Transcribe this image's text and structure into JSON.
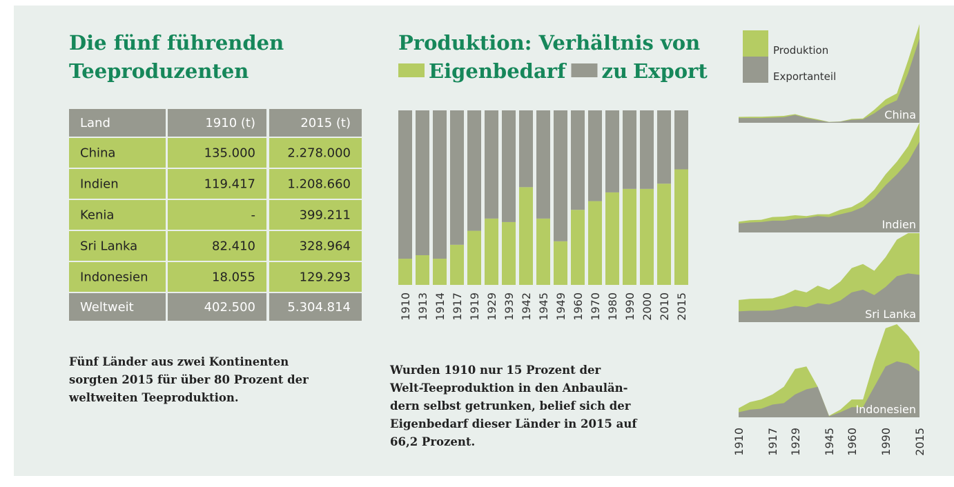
{
  "left": {
    "title": [
      "Die fünf führenden",
      "Teeproduzenten"
    ],
    "text": [
      "Fünf Länder aus zwei Kontinenten",
      "sorgten 2015 für über 80 Prozent der",
      "weltweiten Teeproduktion."
    ]
  },
  "table": {
    "header": [
      "Land",
      "1910 (t)",
      "2015 (t)"
    ],
    "rows": [
      [
        "China",
        "135.000",
        "2.278.000"
      ],
      [
        "Indien",
        "119.417",
        "1.208.660"
      ],
      [
        "Kenia",
        "-",
        "399.211"
      ],
      [
        "Sri Lanka",
        "82.410",
        "328.964"
      ],
      [
        "Indonesien",
        "18.055",
        "129.293"
      ]
    ],
    "total": [
      "Weltweit",
      "402.500",
      "5.304.814"
    ]
  },
  "middle": {
    "text": [
      "Wurden 1910 nur 15 Prozent der",
      "Welt-Teeproduktion in den Anbaulän-",
      "dern selbst getrunken, belief sich der",
      "Eigenbedarf dieser Länder in 2015 auf",
      "66,2 Prozent."
    ]
  },
  "chart_data": [
    {
      "type": "bar",
      "stacked": true,
      "title": "Produktion: Verhältnis von",
      "legend_joiner": "zu",
      "categories": [
        "1910",
        "1913",
        "1914",
        "1917",
        "1919",
        "1929",
        "1939",
        "1942",
        "1945",
        "1949",
        "1960",
        "1970",
        "1980",
        "1990",
        "2000",
        "2010",
        "2015"
      ],
      "ylim": [
        0,
        100
      ],
      "series": [
        {
          "name": "Eigenbedarf",
          "color": "#b5cc63",
          "values": [
            15,
            17,
            15,
            23,
            31,
            38,
            36,
            56,
            38,
            25,
            43,
            48,
            53,
            55,
            55,
            58,
            66.2
          ]
        },
        {
          "name": "Export",
          "color": "#97998f",
          "values": [
            85,
            83,
            85,
            77,
            69,
            62,
            64,
            44,
            62,
            75,
            57,
            52,
            47,
            45,
            45,
            42,
            33.8
          ]
        }
      ]
    },
    {
      "type": "area",
      "categories": [
        "1910",
        null,
        null,
        "1917",
        null,
        "1929",
        null,
        null,
        "1945",
        null,
        "1960",
        null,
        null,
        "1990",
        null,
        null,
        "2015"
      ],
      "series": [
        {
          "name": "Produktion",
          "color": "#b5cc63"
        },
        {
          "name": "Exportanteil",
          "color": "#97998f"
        }
      ],
      "panels": [
        {
          "title": "China",
          "ylim": [
            0,
            2278
          ],
          "values": [
            [
              135,
              140,
              140,
              150,
              160,
              200,
              130,
              80,
              20,
              30,
              90,
              100,
              300,
              540,
              680,
              1450,
              2278
            ],
            [
              110,
              110,
              110,
              120,
              130,
              180,
              110,
              60,
              15,
              25,
              70,
              80,
              220,
              400,
              520,
              1150,
              1950
            ]
          ]
        },
        {
          "title": "Indien",
          "ylim": [
            0,
            1208
          ],
          "values": [
            [
              119,
              135,
              140,
              170,
              175,
              190,
              180,
              200,
              200,
              250,
              280,
              350,
              470,
              640,
              780,
              950,
              1208
            ],
            [
              100,
              110,
              115,
              130,
              130,
              150,
              160,
              180,
              170,
              200,
              230,
              280,
              380,
              520,
              640,
              780,
              1000
            ]
          ]
        },
        {
          "title": "Sri Lanka",
          "ylim": [
            0,
            329
          ],
          "values": [
            [
              82,
              86,
              87,
              88,
              100,
              120,
              110,
              135,
              120,
              150,
              200,
              215,
              190,
              240,
              305,
              329,
              329
            ],
            [
              40,
              42,
              42,
              43,
              50,
              60,
              55,
              70,
              65,
              80,
              110,
              120,
              100,
              130,
              170,
              180,
              175
            ]
          ]
        },
        {
          "title": "Indonesien",
          "ylim": [
            0,
            183
          ],
          "values": [
            [
              18,
              30,
              35,
              45,
              60,
              95,
              100,
              60,
              3,
              15,
              35,
              35,
              110,
              175,
              183,
              160,
              129
            ],
            [
              10,
              15,
              17,
              25,
              28,
              45,
              55,
              60,
              2,
              10,
              20,
              20,
              60,
              100,
              110,
              105,
              90
            ]
          ]
        }
      ]
    }
  ]
}
